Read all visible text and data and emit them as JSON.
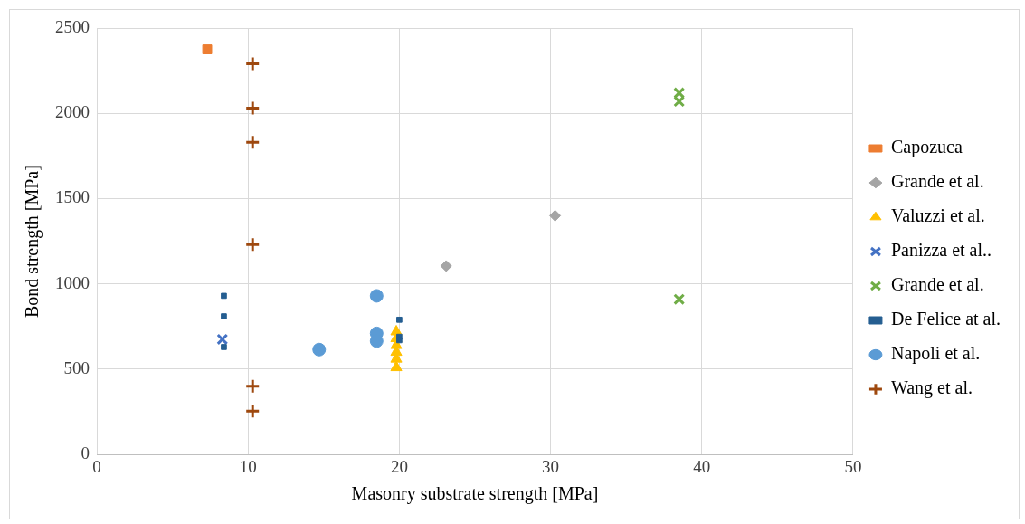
{
  "chart_data": {
    "type": "scatter",
    "xlabel": "Masonry substrate strength [MPa]",
    "ylabel": "Bond strength [MPa]",
    "xlim": [
      0,
      50
    ],
    "xticks": [
      0,
      10,
      20,
      30,
      40,
      50
    ],
    "ylim": [
      0,
      2500
    ],
    "yticks": [
      0,
      500,
      {
        "value": 1000,
        "label": "1000"
      },
      {
        "value": 1500,
        "label": "1500"
      },
      {
        "value": 2000,
        "label": "2000"
      },
      {
        "value": 2500,
        "label": "2500"
      }
    ],
    "grid": true,
    "legend": "right",
    "series": [
      {
        "name": "Capozuca",
        "color": "#ed7d31",
        "marker": "square",
        "x": [
          7.3
        ],
        "values": [
          2375
        ]
      },
      {
        "name": "Grande et al.",
        "color": "#a5a5a5",
        "marker": "diamond",
        "x": [
          23.1,
          30.3
        ],
        "values": [
          1105,
          1400
        ]
      },
      {
        "name": "Valuzzi et al.",
        "color": "#ffc000",
        "marker": "triangle",
        "x": [
          19.8,
          19.8,
          19.8,
          19.8,
          19.8,
          19.8
        ],
        "values": [
          720,
          680,
          640,
          600,
          560,
          510
        ]
      },
      {
        "name": "Panizza et al..",
        "color": "#4472c4",
        "marker": "cross",
        "x": [
          8.3
        ],
        "values": [
          675
        ]
      },
      {
        "name": "Grande et al.",
        "color": "#70ad47",
        "marker": "cross",
        "x": [
          38.5,
          38.5,
          38.5
        ],
        "values": [
          2120,
          2070,
          910
        ]
      },
      {
        "name": "De Felice at al.",
        "color": "#255e91",
        "marker": "square",
        "x": [
          8.4,
          8.4,
          8.4,
          20,
          20,
          20
        ],
        "values": [
          930,
          810,
          630,
          790,
          690,
          670
        ]
      },
      {
        "name": "Napoli et al.",
        "color": "#5b9bd5",
        "marker": "circle",
        "x": [
          14.7,
          18.5,
          18.5,
          18.5
        ],
        "values": [
          615,
          930,
          710,
          665
        ]
      },
      {
        "name": "Wang et al.",
        "color": "#9e480e",
        "marker": "plus",
        "x": [
          10.3,
          10.3,
          10.3,
          10.3,
          10.3,
          10.3
        ],
        "values": [
          2290,
          2030,
          1830,
          1230,
          400,
          255
        ]
      }
    ]
  }
}
